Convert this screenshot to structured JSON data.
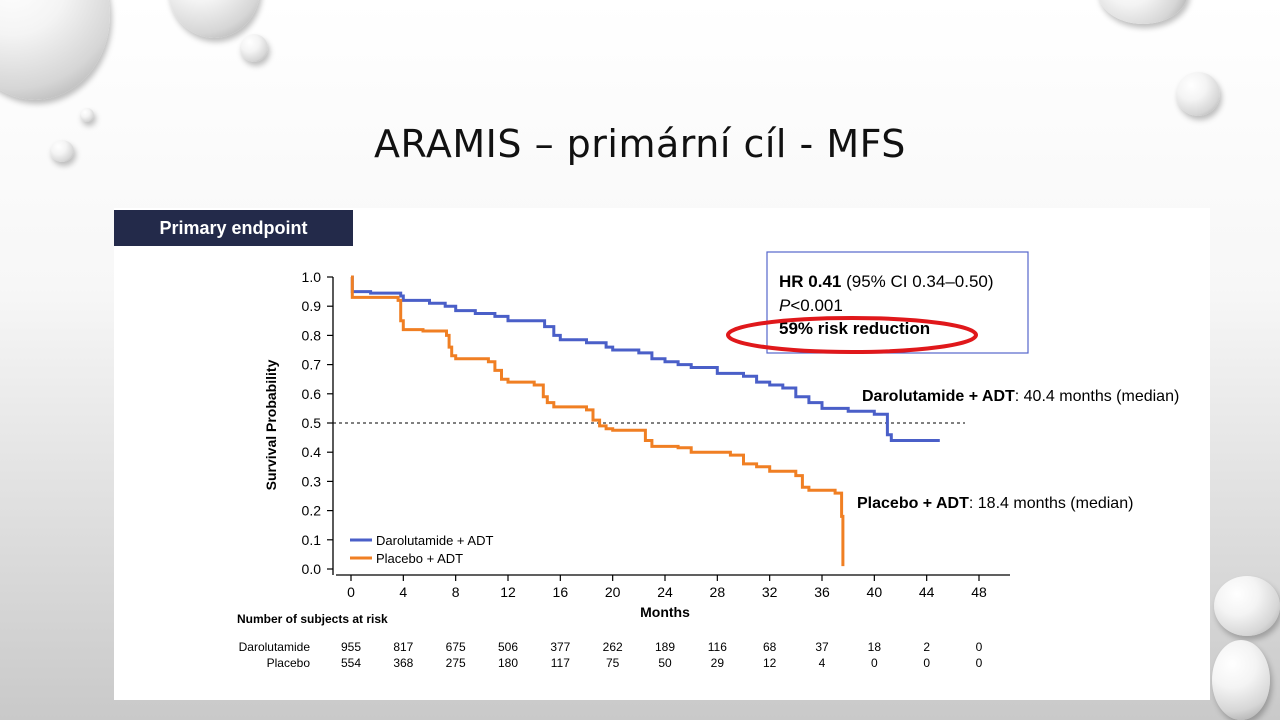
{
  "slide": {
    "title": "ARAMIS – primární cíl - MFS",
    "endpoint_label": "Primary endpoint"
  },
  "colors": {
    "darolutamide": "#4a5fc8",
    "placebo": "#f07f23",
    "endpoint_bar": "#232a4a",
    "highlight_ellipse": "#e0181b",
    "stats_box_border": "#5566cc"
  },
  "stats_box": {
    "hr_bold": "HR 0.41",
    "hr_ci": " (95% CI 0.34–0.50)",
    "p_italic": "P",
    "p_value": "<0.001",
    "risk_reduction": "59% risk reduction"
  },
  "chart_data": {
    "type": "line",
    "step": true,
    "ylabel": "Survival Probability",
    "xlabel": "Months",
    "xlim": [
      0,
      48
    ],
    "ylim": [
      0,
      1.0
    ],
    "x_ticks": [
      0,
      4,
      8,
      12,
      16,
      20,
      24,
      28,
      32,
      36,
      40,
      44,
      48
    ],
    "y_ticks": [
      0.0,
      0.1,
      0.2,
      0.3,
      0.4,
      0.5,
      0.6,
      0.7,
      0.8,
      0.9,
      1.0
    ],
    "y_tick_labels": [
      "0.0",
      "0.1",
      "0.2",
      "0.3",
      "0.4",
      "0.5",
      "0.6",
      "0.7",
      "0.8",
      "0.9",
      "1.0"
    ],
    "reference_line": {
      "y": 0.5,
      "style": "dashed"
    },
    "legend": {
      "placement": "bottom-left",
      "items": [
        "Darolutamide + ADT",
        "Placebo + ADT"
      ]
    },
    "series": [
      {
        "name": "Darolutamide + ADT",
        "color_key": "darolutamide",
        "points": [
          [
            0,
            1.0
          ],
          [
            0.1,
            0.95
          ],
          [
            1.5,
            0.945
          ],
          [
            3.8,
            0.935
          ],
          [
            4,
            0.92
          ],
          [
            6,
            0.91
          ],
          [
            7.2,
            0.9
          ],
          [
            8,
            0.885
          ],
          [
            9.5,
            0.875
          ],
          [
            11,
            0.865
          ],
          [
            12,
            0.85
          ],
          [
            14.8,
            0.83
          ],
          [
            15.5,
            0.8
          ],
          [
            16,
            0.785
          ],
          [
            18,
            0.775
          ],
          [
            19.5,
            0.76
          ],
          [
            20,
            0.75
          ],
          [
            22,
            0.74
          ],
          [
            23,
            0.72
          ],
          [
            24,
            0.71
          ],
          [
            25,
            0.7
          ],
          [
            26,
            0.69
          ],
          [
            28,
            0.67
          ],
          [
            30,
            0.66
          ],
          [
            31,
            0.64
          ],
          [
            32,
            0.63
          ],
          [
            33,
            0.62
          ],
          [
            34,
            0.59
          ],
          [
            35,
            0.57
          ],
          [
            36,
            0.55
          ],
          [
            38,
            0.54
          ],
          [
            40,
            0.53
          ],
          [
            41,
            0.46
          ],
          [
            41.3,
            0.44
          ],
          [
            45,
            0.44
          ]
        ]
      },
      {
        "name": "Placebo + ADT",
        "color_key": "placebo",
        "points": [
          [
            0,
            1.0
          ],
          [
            0.1,
            0.93
          ],
          [
            3.6,
            0.92
          ],
          [
            3.8,
            0.85
          ],
          [
            4,
            0.82
          ],
          [
            5.5,
            0.815
          ],
          [
            7.3,
            0.8
          ],
          [
            7.5,
            0.76
          ],
          [
            7.7,
            0.73
          ],
          [
            8,
            0.72
          ],
          [
            10.5,
            0.71
          ],
          [
            11,
            0.68
          ],
          [
            11.5,
            0.65
          ],
          [
            12,
            0.64
          ],
          [
            14,
            0.63
          ],
          [
            14.7,
            0.59
          ],
          [
            15,
            0.57
          ],
          [
            15.5,
            0.555
          ],
          [
            18,
            0.545
          ],
          [
            18.5,
            0.51
          ],
          [
            19,
            0.49
          ],
          [
            19.5,
            0.48
          ],
          [
            20,
            0.475
          ],
          [
            22.5,
            0.44
          ],
          [
            23,
            0.42
          ],
          [
            25,
            0.415
          ],
          [
            26,
            0.4
          ],
          [
            29,
            0.39
          ],
          [
            30,
            0.36
          ],
          [
            31,
            0.35
          ],
          [
            32,
            0.335
          ],
          [
            34,
            0.32
          ],
          [
            34.5,
            0.28
          ],
          [
            35,
            0.27
          ],
          [
            37,
            0.26
          ],
          [
            37.5,
            0.18
          ],
          [
            37.6,
            0.01
          ]
        ]
      }
    ],
    "median_annotations": [
      {
        "bold": "Darolutamide + ADT",
        "text": ": 40.4 months (median)"
      },
      {
        "bold": "Placebo + ADT",
        "text": ": 18.4 months (median)"
      }
    ],
    "at_risk": {
      "title": "Number of subjects at risk",
      "rows": [
        {
          "label": "Darolutamide",
          "values": [
            "955",
            "817",
            "675",
            "506",
            "377",
            "262",
            "189",
            "116",
            "68",
            "37",
            "18",
            "2",
            "0"
          ]
        },
        {
          "label": "Placebo",
          "values": [
            "554",
            "368",
            "275",
            "180",
            "117",
            "75",
            "50",
            "29",
            "12",
            "4",
            "0",
            "0",
            "0"
          ]
        }
      ]
    }
  }
}
